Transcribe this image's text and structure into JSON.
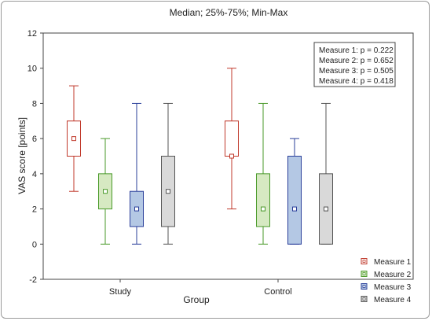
{
  "chart_data": {
    "type": "boxplot",
    "title": "Median; 25%-75%; Min-Max",
    "xlabel": "Group",
    "ylabel": "VAS score [points]",
    "ylim": [
      -2,
      12
    ],
    "yticks": [
      -2,
      0,
      2,
      4,
      6,
      8,
      10,
      12
    ],
    "grid": false,
    "legend_position": "bottom-right",
    "categories": [
      "Study",
      "Control"
    ],
    "series": [
      {
        "name": "Measure 1",
        "color": "#c0392b",
        "fill": "#ffffff",
        "stats": [
          {
            "min": 3,
            "q1": 5,
            "median": 6,
            "q3": 7,
            "max": 9
          },
          {
            "min": 2,
            "q1": 5,
            "median": 5,
            "q3": 7,
            "max": 10
          }
        ]
      },
      {
        "name": "Measure 2",
        "color": "#4a9a2a",
        "fill": "#d6e9c2",
        "stats": [
          {
            "min": 0,
            "q1": 2,
            "median": 3,
            "q3": 4,
            "max": 6
          },
          {
            "min": 0,
            "q1": 1,
            "median": 2,
            "q3": 4,
            "max": 8
          }
        ]
      },
      {
        "name": "Measure 3",
        "color": "#2a3f9a",
        "fill": "#b4c8e4",
        "stats": [
          {
            "min": 0,
            "q1": 1,
            "median": 2,
            "q3": 3,
            "max": 8
          },
          {
            "min": 0,
            "q1": 0,
            "median": 2,
            "q3": 5,
            "max": 6
          }
        ]
      },
      {
        "name": "Measure 4",
        "color": "#555555",
        "fill": "#d9d9d9",
        "stats": [
          {
            "min": 0,
            "q1": 1,
            "median": 3,
            "q3": 5,
            "max": 8
          },
          {
            "min": 0,
            "q1": 0,
            "median": 2,
            "q3": 4,
            "max": 8
          }
        ]
      }
    ],
    "annotation": [
      "Measure 1: p = 0.222",
      "Measure 2: p = 0.652",
      "Measure 3: p = 0.505",
      "Measure 4: p = 0.418"
    ]
  }
}
